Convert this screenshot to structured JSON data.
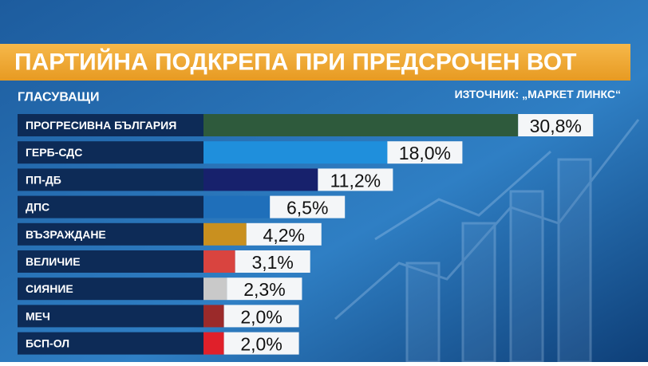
{
  "chart_data": {
    "type": "bar",
    "title": "ПАРТИЙНА ПОДКРЕПА ПРИ ПРЕДСРОЧЕН ВОТ",
    "subtitle": "ГЛАСУВАЩИ",
    "source": "ИЗТОЧНИК: „МАРКЕТ ЛИНКС“",
    "categories": [
      "ПРОГРЕСИВНА БЪЛГАРИЯ",
      "ГЕРБ-СДС",
      "ПП-ДБ",
      "ДПС",
      "ВЪЗРАЖДАНЕ",
      "ВЕЛИЧИЕ",
      "СИЯНИЕ",
      "МЕЧ",
      "БСП-ОЛ"
    ],
    "values": [
      30.8,
      18.0,
      11.2,
      6.5,
      4.2,
      3.1,
      2.3,
      2.0,
      2.0
    ],
    "value_labels": [
      "30,8%",
      "18,0%",
      "11,2%",
      "6,5%",
      "4,2%",
      "3,1%",
      "2,3%",
      "2,0%",
      "2,0%"
    ],
    "colors": [
      "#2e5a3c",
      "#1f8fdc",
      "#17216c",
      "#1f6fba",
      "#c9901f",
      "#d9443f",
      "#c9c9c9",
      "#9b2a2a",
      "#e0202a"
    ]
  }
}
